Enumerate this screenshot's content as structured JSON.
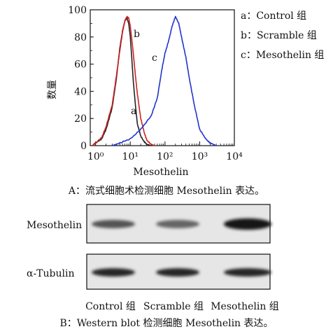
{
  "panel_a": {
    "caption": "A：流式细胞术检测细胞 Mesothelin 表达。",
    "legend": [
      "a：Control 组",
      "b：Scramble 组",
      "c：Mesothelin 组"
    ]
  },
  "panel_b": {
    "caption": "B：Western blot 检测细胞 Mesothelin 表达。",
    "row_labels": [
      "Mesothelin",
      "α-Tubulin"
    ],
    "lane_labels": [
      "Control 组",
      "Scramble 组",
      "Mesothelin 组"
    ],
    "band_intensity": {
      "Mesothelin": [
        0.65,
        0.55,
        1.0
      ],
      "α-Tubulin": [
        0.9,
        0.9,
        0.9
      ]
    }
  },
  "chart_data": {
    "type": "line",
    "xlabel": "Mesothelin",
    "ylabel": "数量",
    "xscale": "log",
    "xlim": [
      0.7,
      10000
    ],
    "ylim": [
      0,
      100
    ],
    "yticks": [
      0,
      20,
      40,
      60,
      80,
      100
    ],
    "xticks": [
      1,
      10,
      100,
      1000,
      10000
    ],
    "xtick_labels": [
      "10⁰",
      "10¹",
      "10²",
      "10³",
      "10⁴"
    ],
    "annotations": [
      "a",
      "b",
      "c"
    ],
    "series": [
      {
        "name": "a：Control 组",
        "color": "#222222",
        "x": [
          0.8,
          1.0,
          1.5,
          2,
          3,
          4,
          5,
          6,
          7,
          8,
          9,
          10,
          11,
          12,
          14,
          16,
          20,
          25,
          30,
          40
        ],
        "y": [
          0,
          2,
          5,
          12,
          28,
          50,
          72,
          85,
          92,
          94,
          90,
          80,
          65,
          50,
          30,
          16,
          7,
          3,
          1,
          0
        ]
      },
      {
        "name": "b：Scramble 组",
        "color": "#cc2222",
        "x": [
          0.8,
          1.0,
          1.5,
          2,
          3,
          4,
          5,
          6,
          7,
          8,
          9,
          10,
          12,
          14,
          16,
          20,
          25,
          30,
          40,
          50
        ],
        "y": [
          0,
          2,
          6,
          14,
          30,
          52,
          70,
          84,
          92,
          95,
          94,
          88,
          70,
          52,
          38,
          20,
          10,
          4,
          1,
          0
        ]
      },
      {
        "name": "c：Mesothelin 组",
        "color": "#2233cc",
        "x": [
          3,
          5,
          10,
          20,
          40,
          60,
          80,
          100,
          130,
          160,
          200,
          250,
          300,
          400,
          500,
          700,
          1000,
          1500,
          2000,
          3000
        ],
        "y": [
          0,
          2,
          5,
          12,
          22,
          35,
          55,
          68,
          78,
          88,
          95,
          90,
          80,
          65,
          50,
          30,
          12,
          5,
          2,
          0
        ]
      }
    ]
  }
}
